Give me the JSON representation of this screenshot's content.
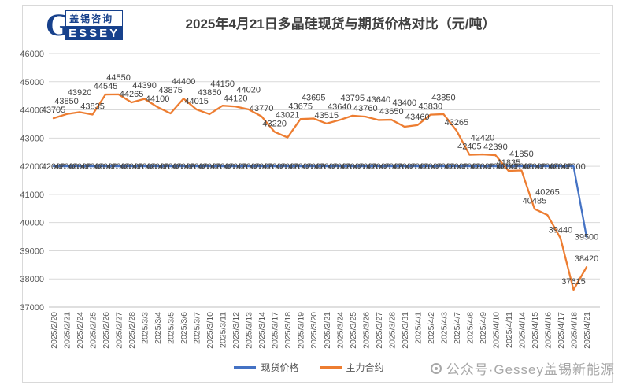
{
  "logo": {
    "letter": "G",
    "name_cn": "盖锡咨询",
    "name_en": "ESSEY"
  },
  "watermark": {
    "text": "公众号·Gessey盖锡新能源"
  },
  "colors": {
    "spot": "#4472C4",
    "futures": "#ED7D31",
    "grid": "#d9d9d9",
    "axis_line": "#bfbfbf",
    "axis_text": "#595959",
    "label_text": "#404040"
  },
  "chart_data": {
    "type": "line",
    "title": "2025年4月21日多晶硅现货与期货价格对比（元/吨）",
    "xlabel": "",
    "ylabel": "",
    "ylim": [
      37000,
      46000
    ],
    "ytick_step": 1000,
    "y_ticks": [
      46000,
      45000,
      44000,
      43000,
      42000,
      41000,
      40000,
      39000,
      38000,
      37000
    ],
    "grid": true,
    "legend_position": "bottom",
    "data_labels": true,
    "categories": [
      "2025/2/20",
      "2025/2/21",
      "2025/2/24",
      "2025/2/25",
      "2025/2/26",
      "2025/2/27",
      "2025/2/28",
      "2025/3/3",
      "2025/3/4",
      "2025/3/5",
      "2025/3/6",
      "2025/3/7",
      "2025/3/10",
      "2025/3/11",
      "2025/3/12",
      "2025/3/13",
      "2025/3/14",
      "2025/3/17",
      "2025/3/18",
      "2025/3/19",
      "2025/3/20",
      "2025/3/21",
      "2025/3/24",
      "2025/3/25",
      "2025/3/26",
      "2025/3/27",
      "2025/3/28",
      "2025/3/31",
      "2025/4/1",
      "2025/4/2",
      "2025/4/3",
      "2025/4/7",
      "2025/4/8",
      "2025/4/9",
      "2025/4/10",
      "2025/4/11",
      "2025/4/14",
      "2025/4/15",
      "2025/4/16",
      "2025/4/17",
      "2025/4/18",
      "2025/4/21"
    ],
    "series": [
      {
        "name": "现货价格",
        "color": "#4472C4",
        "values": [
          42000,
          42000,
          42000,
          42000,
          42000,
          42000,
          42000,
          42000,
          42000,
          42000,
          42000,
          42000,
          42000,
          42000,
          42000,
          42000,
          42000,
          42000,
          42000,
          42000,
          42000,
          42000,
          42000,
          42000,
          42000,
          42000,
          42000,
          42000,
          42000,
          42000,
          42000,
          42000,
          42000,
          42000,
          42000,
          42000,
          42000,
          42000,
          42000,
          42000,
          42000,
          39500
        ]
      },
      {
        "name": "主力合约",
        "color": "#ED7D31",
        "values": [
          43705,
          43850,
          43920,
          43835,
          44545,
          44550,
          44265,
          44390,
          44100,
          43875,
          44400,
          44015,
          43850,
          44150,
          44120,
          44020,
          43770,
          43220,
          43021,
          43675,
          43695,
          43515,
          43640,
          43795,
          43760,
          43640,
          43650,
          43400,
          43460,
          43830,
          43850,
          43265,
          42405,
          42420,
          42390,
          41835,
          41850,
          40485,
          40265,
          39440,
          37615,
          38420
        ]
      }
    ]
  }
}
